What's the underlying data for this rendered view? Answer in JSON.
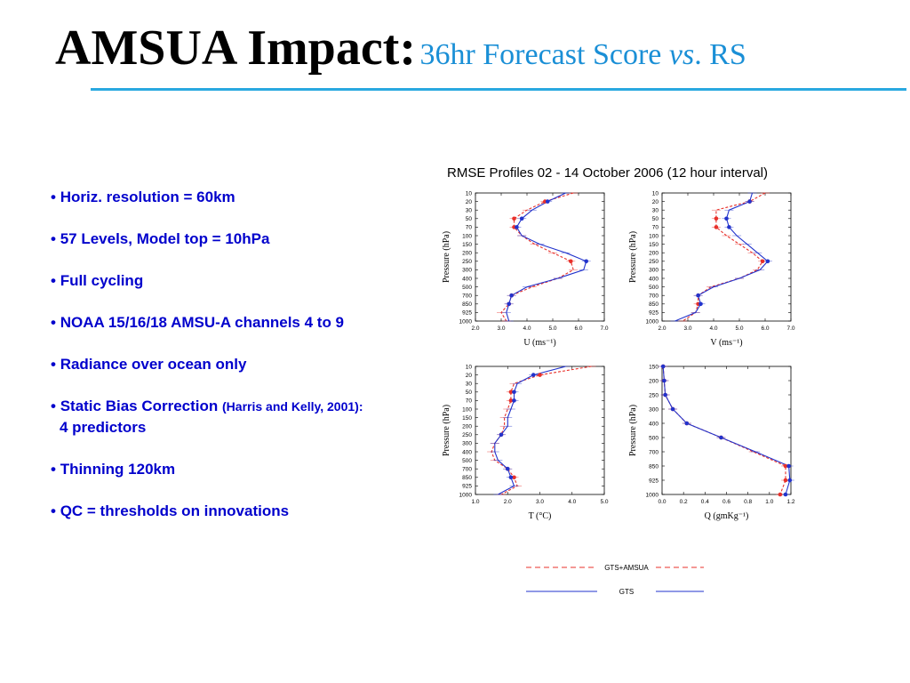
{
  "slide": {
    "title_main": "AMSUA Impact:",
    "title_sub_prefix": "36hr Forecast Score ",
    "title_sub_vs": "vs",
    "title_sub_suffix": ". RS"
  },
  "bullets": [
    {
      "text": "Horiz. resolution = 60km"
    },
    {
      "text": "57 Levels, Model top = 10hPa"
    },
    {
      "text": "Full cycling"
    },
    {
      "text": "NOAA 15/16/18 AMSU-A channels 4 to 9"
    },
    {
      "text": "Radiance over ocean only"
    },
    {
      "text": "Static Bias Correction ",
      "small": "(Harris and Kelly, 2001):",
      "cont": "4 predictors"
    },
    {
      "text": "Thinning 120km"
    },
    {
      "text": "QC = thresholds on innovations"
    }
  ],
  "figure": {
    "title": "RMSE Profiles  02 - 14 October 2006 (12 hour interval)",
    "colors": {
      "gts_amsua": "#e8312b",
      "gts": "#2233cc"
    },
    "legend": [
      {
        "name": "GTS+AMSUA",
        "color": "#e8312b",
        "dashed": true
      },
      {
        "name": "GTS",
        "color": "#2233cc",
        "dashed": false
      }
    ]
  },
  "chart_data": [
    {
      "type": "line",
      "xlabel": "U (ms⁻¹)",
      "ylabel": "Pressure (hPa)",
      "xlim": [
        2.0,
        7.0
      ],
      "xticks": [
        "2.0",
        "3.0",
        "4.0",
        "5.0",
        "6.0",
        "7.0"
      ],
      "y_levels": [
        "10",
        "20",
        "30",
        "50",
        "70",
        "100",
        "150",
        "200",
        "250",
        "300",
        "400",
        "500",
        "700",
        "850",
        "925",
        "1000"
      ],
      "series": [
        {
          "name": "GTS+AMSUA",
          "values": [
            5.8,
            4.7,
            4.0,
            3.5,
            3.5,
            3.8,
            4.3,
            5.0,
            5.7,
            5.8,
            5.2,
            4.2,
            3.4,
            3.3,
            3.0,
            3.2
          ]
        },
        {
          "name": "GTS",
          "values": [
            5.5,
            4.8,
            4.2,
            3.8,
            3.6,
            3.8,
            4.5,
            5.5,
            6.3,
            6.2,
            5.2,
            4.0,
            3.4,
            3.3,
            3.2,
            3.3
          ]
        }
      ]
    },
    {
      "type": "line",
      "xlabel": "V (ms⁻¹)",
      "ylabel": "Pressure (hPa)",
      "xlim": [
        2.0,
        7.0
      ],
      "xticks": [
        "2.0",
        "3.0",
        "4.0",
        "5.0",
        "6.0",
        "7.0"
      ],
      "y_levels": [
        "10",
        "20",
        "30",
        "50",
        "70",
        "100",
        "150",
        "200",
        "250",
        "300",
        "400",
        "500",
        "700",
        "850",
        "925",
        "1000"
      ],
      "series": [
        {
          "name": "GTS+AMSUA",
          "values": [
            6.0,
            5.4,
            4.1,
            4.1,
            4.1,
            4.5,
            5.0,
            5.5,
            5.9,
            5.7,
            5.0,
            3.9,
            3.4,
            3.4,
            3.3,
            2.8
          ]
        },
        {
          "name": "GTS",
          "values": [
            5.5,
            5.4,
            4.6,
            4.5,
            4.6,
            4.9,
            5.3,
            5.7,
            6.1,
            5.8,
            5.0,
            4.0,
            3.4,
            3.5,
            3.3,
            2.5
          ]
        }
      ]
    },
    {
      "type": "line",
      "xlabel": "T (°C)",
      "ylabel": "Pressure (hPa)",
      "xlim": [
        1.0,
        5.0
      ],
      "xticks": [
        "1.0",
        "2.0",
        "3.0",
        "4.0",
        "5.0"
      ],
      "y_levels": [
        "10",
        "20",
        "30",
        "50",
        "70",
        "100",
        "150",
        "200",
        "250",
        "300",
        "400",
        "500",
        "700",
        "850",
        "925",
        "1000"
      ],
      "series": [
        {
          "name": "GTS+AMSUA",
          "values": [
            4.6,
            3.0,
            2.2,
            2.1,
            2.1,
            2.0,
            1.9,
            1.9,
            1.8,
            1.6,
            1.5,
            1.6,
            2.0,
            2.2,
            2.3,
            1.8
          ]
        },
        {
          "name": "GTS",
          "values": [
            3.8,
            2.8,
            2.3,
            2.2,
            2.2,
            2.1,
            2.0,
            2.0,
            1.8,
            1.6,
            1.6,
            1.7,
            2.0,
            2.1,
            2.2,
            1.7
          ]
        }
      ]
    },
    {
      "type": "line",
      "xlabel": "Q (gmKg⁻¹)",
      "ylabel": "Pressure (hPa)",
      "xlim": [
        0.0,
        1.2
      ],
      "xticks": [
        "0.0",
        "0.2",
        "0.4",
        "0.6",
        "0.8",
        "1.0",
        "1.2"
      ],
      "y_levels": [
        "150",
        "200",
        "250",
        "300",
        "400",
        "500",
        "700",
        "850",
        "925",
        "1000"
      ],
      "series": [
        {
          "name": "GTS+AMSUA",
          "values": [
            0.01,
            0.02,
            0.03,
            0.1,
            0.23,
            0.55,
            0.85,
            1.15,
            1.15,
            1.1
          ]
        },
        {
          "name": "GTS",
          "values": [
            0.01,
            0.02,
            0.03,
            0.1,
            0.23,
            0.55,
            0.87,
            1.18,
            1.19,
            1.15
          ]
        }
      ]
    }
  ]
}
